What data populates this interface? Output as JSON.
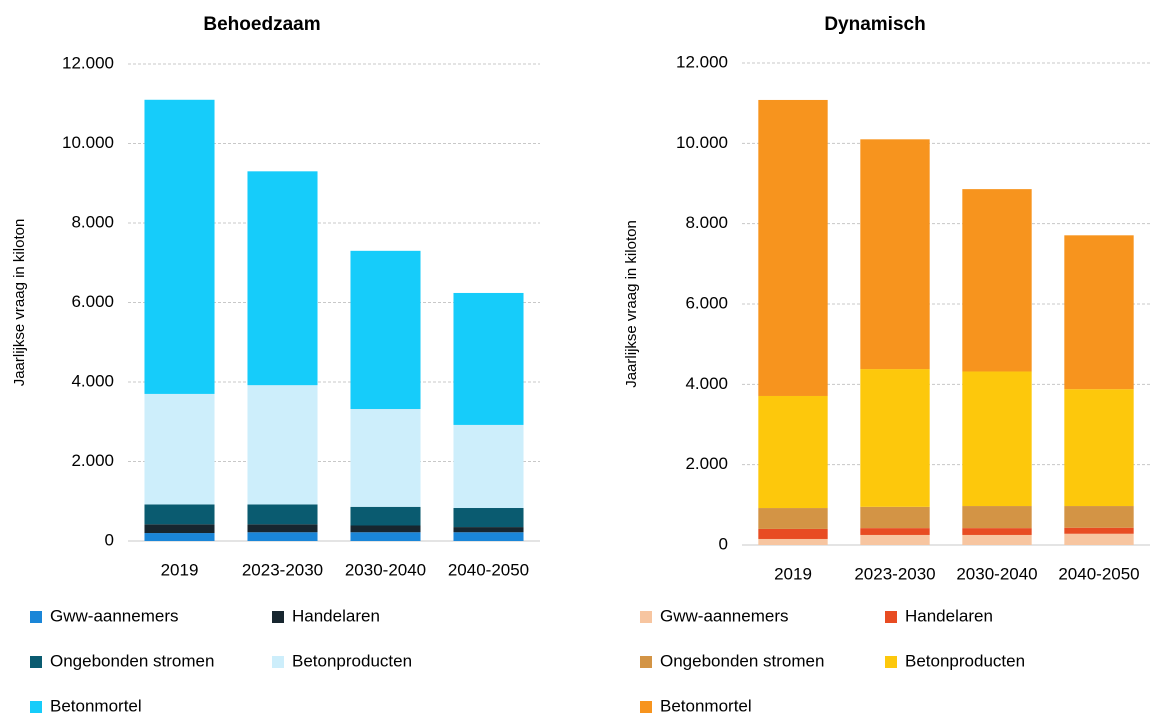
{
  "chart_data": [
    {
      "type": "bar",
      "stacked": true,
      "title": "Behoedzaam",
      "y_label": "Jaarlijkse vraag in kiloton",
      "categories": [
        "2019",
        "2023-2030",
        "2030-2040",
        "2040-2050"
      ],
      "ylim": [
        0,
        12000
      ],
      "yticks": [
        0,
        {
          "value": 2000,
          "label": "2.000"
        },
        {
          "value": 4000,
          "label": "4.000"
        },
        {
          "value": 6000,
          "label": "6.000"
        },
        {
          "value": 8000,
          "label": "8.000"
        },
        {
          "value": 10000,
          "label": "10.000"
        },
        {
          "value": 12000,
          "label": "12.000"
        }
      ],
      "grid": true,
      "series": [
        {
          "name": "Gww-aannemers",
          "color": "#1a86d8",
          "values": [
            200,
            220,
            220,
            220
          ]
        },
        {
          "name": "Handelaren",
          "color": "#17262f",
          "values": [
            220,
            200,
            170,
            130
          ]
        },
        {
          "name": "Ongebonden stromen",
          "color": "#0a5b70",
          "values": [
            500,
            500,
            470,
            480
          ]
        },
        {
          "name": "Betonproducten",
          "color": "#cdeefb",
          "values": [
            2780,
            3000,
            2460,
            2090
          ]
        },
        {
          "name": "Betonmortel",
          "color": "#16ccfa",
          "values": [
            7400,
            5380,
            3980,
            3320
          ]
        }
      ]
    },
    {
      "type": "bar",
      "stacked": true,
      "title": "Dynamisch",
      "y_label": "Jaarlijkse vraag in kiloton",
      "categories": [
        "2019",
        "2023-2030",
        "2030-2040",
        "2040-2050"
      ],
      "ylim": [
        0,
        12000
      ],
      "yticks": [
        0,
        {
          "value": 2000,
          "label": "2.000"
        },
        {
          "value": 4000,
          "label": "4.000"
        },
        {
          "value": 6000,
          "label": "6.000"
        },
        {
          "value": 8000,
          "label": "8.000"
        },
        {
          "value": 10000,
          "label": "10.000"
        },
        {
          "value": 12000,
          "label": "12.000"
        }
      ],
      "grid": true,
      "series": [
        {
          "name": "Gww-aannemers",
          "color": "#f7c5a0",
          "values": [
            150,
            250,
            250,
            280
          ]
        },
        {
          "name": "Handelaren",
          "color": "#e84c22",
          "values": [
            250,
            170,
            170,
            150
          ]
        },
        {
          "name": "Ongebonden stromen",
          "color": "#d39445",
          "values": [
            520,
            530,
            550,
            540
          ]
        },
        {
          "name": "Betonproducten",
          "color": "#fdc80c",
          "values": [
            2790,
            3430,
            3350,
            2910
          ]
        },
        {
          "name": "Betonmortel",
          "color": "#f7941e",
          "values": [
            7370,
            5720,
            4540,
            3830
          ]
        }
      ]
    }
  ]
}
